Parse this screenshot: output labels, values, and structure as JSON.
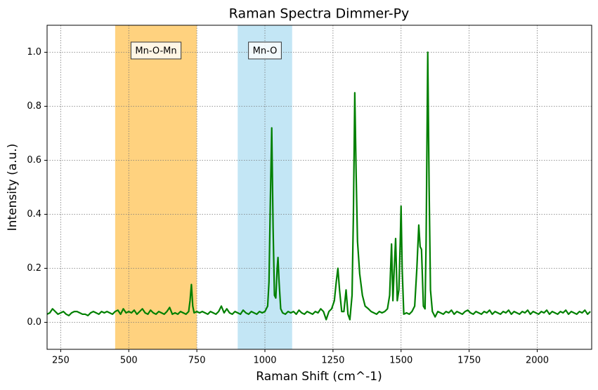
{
  "chart_data": {
    "type": "line",
    "title": "Raman Spectra Dimmer-Py",
    "x_label": "Raman Shift (cm^-1)",
    "y_label": "Intensity (a.u.)",
    "xlim": [
      200,
      2200
    ],
    "ylim": [
      -0.1,
      1.1
    ],
    "xticks": [
      250,
      500,
      750,
      1000,
      1250,
      1500,
      1750,
      2000
    ],
    "yticks": [
      {
        "value": 0,
        "label": "0.0"
      },
      0.2,
      0.4,
      0.6,
      0.8,
      {
        "value": 1,
        "label": "1.0"
      }
    ],
    "grid": true,
    "spans": [
      {
        "x": [
          450,
          750
        ],
        "color": "orange",
        "label": "Mn-O-Mn",
        "label_color": "orange"
      },
      {
        "x": [
          900,
          1100
        ],
        "color": "skyblue",
        "label": "Mn-O",
        "label_color": "blue"
      }
    ],
    "series": [
      {
        "color": "#008000",
        "x": [
          200,
          210,
          220,
          230,
          240,
          250,
          260,
          270,
          280,
          290,
          300,
          310,
          320,
          330,
          340,
          350,
          360,
          370,
          380,
          390,
          400,
          410,
          420,
          430,
          440,
          450,
          460,
          470,
          480,
          490,
          500,
          510,
          520,
          530,
          540,
          550,
          560,
          570,
          580,
          590,
          600,
          610,
          620,
          630,
          640,
          650,
          660,
          670,
          680,
          690,
          700,
          710,
          720,
          725,
          730,
          735,
          740,
          750,
          760,
          770,
          780,
          790,
          800,
          810,
          820,
          830,
          840,
          850,
          860,
          870,
          880,
          890,
          900,
          910,
          920,
          930,
          940,
          950,
          960,
          970,
          980,
          990,
          1000,
          1010,
          1015,
          1020,
          1025,
          1030,
          1035,
          1040,
          1045,
          1048,
          1052,
          1058,
          1065,
          1075,
          1085,
          1095,
          1105,
          1115,
          1125,
          1135,
          1145,
          1155,
          1165,
          1175,
          1185,
          1195,
          1205,
          1215,
          1225,
          1235,
          1245,
          1255,
          1262,
          1268,
          1274,
          1282,
          1290,
          1298,
          1305,
          1312,
          1320,
          1325,
          1330,
          1335,
          1340,
          1348,
          1358,
          1368,
          1380,
          1390,
          1400,
          1410,
          1420,
          1430,
          1440,
          1450,
          1458,
          1465,
          1470,
          1475,
          1480,
          1486,
          1492,
          1497,
          1500,
          1504,
          1510,
          1520,
          1530,
          1540,
          1550,
          1558,
          1565,
          1570,
          1575,
          1582,
          1588,
          1592,
          1598,
          1603,
          1608,
          1615,
          1625,
          1635,
          1645,
          1655,
          1665,
          1675,
          1685,
          1695,
          1705,
          1715,
          1725,
          1735,
          1745,
          1755,
          1765,
          1775,
          1785,
          1795,
          1805,
          1815,
          1825,
          1835,
          1845,
          1855,
          1865,
          1875,
          1885,
          1895,
          1905,
          1915,
          1925,
          1935,
          1945,
          1955,
          1965,
          1975,
          1985,
          1995,
          2005,
          2015,
          2025,
          2035,
          2045,
          2055,
          2065,
          2075,
          2085,
          2095,
          2105,
          2115,
          2125,
          2135,
          2145,
          2155,
          2165,
          2175,
          2185,
          2195
        ],
        "values": [
          0.03,
          0.035,
          0.05,
          0.04,
          0.03,
          0.035,
          0.04,
          0.03,
          0.025,
          0.035,
          0.04,
          0.04,
          0.035,
          0.03,
          0.03,
          0.025,
          0.035,
          0.04,
          0.035,
          0.03,
          0.04,
          0.035,
          0.04,
          0.035,
          0.03,
          0.04,
          0.045,
          0.03,
          0.05,
          0.035,
          0.04,
          0.035,
          0.045,
          0.03,
          0.04,
          0.05,
          0.035,
          0.03,
          0.045,
          0.035,
          0.03,
          0.04,
          0.035,
          0.03,
          0.04,
          0.055,
          0.03,
          0.035,
          0.03,
          0.04,
          0.035,
          0.03,
          0.04,
          0.08,
          0.14,
          0.06,
          0.035,
          0.04,
          0.035,
          0.04,
          0.035,
          0.03,
          0.04,
          0.035,
          0.03,
          0.04,
          0.06,
          0.035,
          0.05,
          0.035,
          0.03,
          0.04,
          0.035,
          0.03,
          0.045,
          0.035,
          0.03,
          0.04,
          0.035,
          0.03,
          0.04,
          0.035,
          0.04,
          0.06,
          0.15,
          0.45,
          0.72,
          0.35,
          0.1,
          0.09,
          0.2,
          0.24,
          0.15,
          0.05,
          0.035,
          0.03,
          0.04,
          0.035,
          0.04,
          0.03,
          0.045,
          0.035,
          0.03,
          0.04,
          0.035,
          0.03,
          0.04,
          0.035,
          0.05,
          0.04,
          0.01,
          0.04,
          0.05,
          0.08,
          0.15,
          0.2,
          0.12,
          0.04,
          0.04,
          0.12,
          0.03,
          0.01,
          0.1,
          0.4,
          0.85,
          0.55,
          0.3,
          0.18,
          0.1,
          0.06,
          0.05,
          0.04,
          0.035,
          0.03,
          0.04,
          0.035,
          0.04,
          0.05,
          0.1,
          0.29,
          0.08,
          0.2,
          0.31,
          0.08,
          0.12,
          0.3,
          0.43,
          0.2,
          0.03,
          0.035,
          0.03,
          0.04,
          0.06,
          0.2,
          0.36,
          0.28,
          0.27,
          0.06,
          0.05,
          0.3,
          1.0,
          0.5,
          0.12,
          0.04,
          0.02,
          0.04,
          0.035,
          0.03,
          0.04,
          0.035,
          0.045,
          0.03,
          0.04,
          0.035,
          0.03,
          0.04,
          0.045,
          0.035,
          0.03,
          0.04,
          0.035,
          0.03,
          0.04,
          0.035,
          0.045,
          0.03,
          0.04,
          0.035,
          0.03,
          0.04,
          0.035,
          0.045,
          0.03,
          0.04,
          0.035,
          0.03,
          0.04,
          0.035,
          0.045,
          0.03,
          0.04,
          0.035,
          0.03,
          0.04,
          0.035,
          0.045,
          0.03,
          0.04,
          0.035,
          0.03,
          0.04,
          0.035,
          0.045,
          0.03,
          0.04,
          0.035,
          0.03,
          0.04,
          0.035,
          0.045,
          0.03,
          0.04
        ]
      }
    ]
  }
}
